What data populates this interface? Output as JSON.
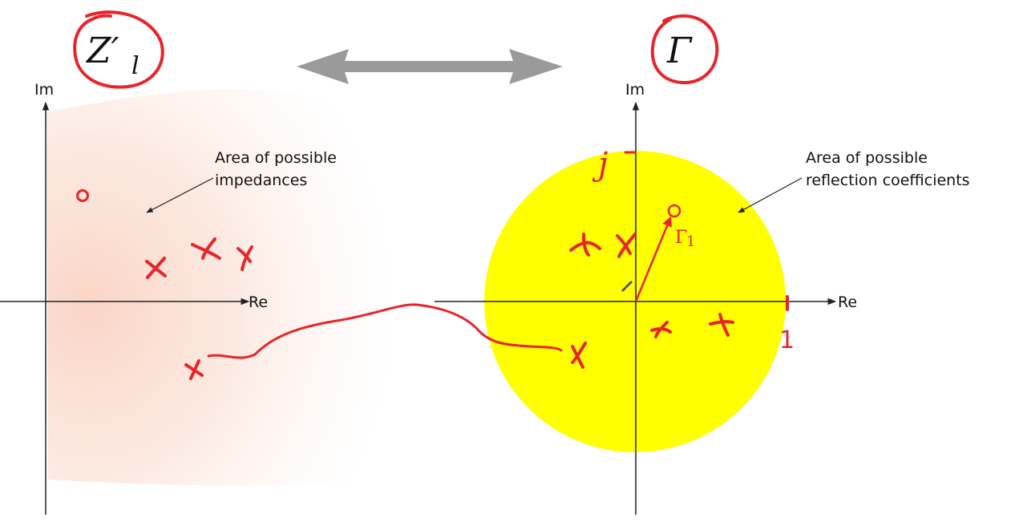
{
  "left_plane": {
    "axis_im_label": "Im",
    "axis_re_label": "Re",
    "symbol": "Z′",
    "symbol_subscript": "l",
    "area_label_line1": "Area of possible",
    "area_label_line2": "impedances"
  },
  "right_plane": {
    "axis_im_label": "Im",
    "axis_re_label": "Re",
    "symbol": "Γ",
    "area_label_line1": "Area of possible",
    "area_label_line2": "reflection coefficients",
    "vector_label": "Γ",
    "vector_label_subscript": "1",
    "unit_circle_fill": "#ffff00"
  },
  "annotations": {
    "handwritten_j": "j",
    "handwritten_one": "1",
    "ink_color": "#e8242b"
  },
  "mapping_arrow_color": "#999999"
}
